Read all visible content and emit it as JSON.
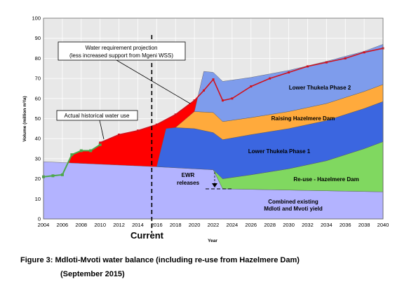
{
  "chart_data": {
    "type": "area",
    "title": "",
    "xlabel": "Year",
    "ylabel": "Volume (million m³/a)",
    "xlim": [
      2004,
      2040
    ],
    "ylim": [
      0,
      100
    ],
    "x_ticks": [
      2004,
      2006,
      2008,
      2010,
      2012,
      2014,
      2016,
      2018,
      2020,
      2022,
      2024,
      2026,
      2028,
      2030,
      2032,
      2034,
      2036,
      2038,
      2040
    ],
    "y_ticks": [
      0,
      10,
      20,
      30,
      40,
      50,
      60,
      70,
      80,
      90,
      100
    ],
    "grid": true,
    "colors": {
      "combined_yield": "#b3b3ff",
      "reuse": "#80d860",
      "lower_thukela_1": "#3b66e0",
      "raising_hazelmere": "#ffaa3c",
      "lower_thukela_2": "#7e9cec",
      "deficit": "#ff0000",
      "historical_line": "#4ca84c",
      "projection_line": "#d0121e",
      "plot_background": "#e8e8e8"
    },
    "series": [
      {
        "name": "Combined existing Mdloti and Mvoti yield",
        "x": [
          2004,
          2016,
          2022,
          2023,
          2040
        ],
        "values": [
          28.5,
          26,
          24.5,
          15,
          13.5
        ]
      },
      {
        "name": "Re-use - Hazelmere Dam",
        "x": [
          2022,
          2023,
          2026,
          2030,
          2034,
          2038,
          2040
        ],
        "values": [
          24.5,
          20,
          22,
          25,
          29,
          35,
          38.5
        ]
      },
      {
        "name": "Lower Thukela Phase 1",
        "x": [
          2016,
          2017,
          2018,
          2020,
          2022,
          2023,
          2026,
          2030,
          2034,
          2038,
          2040
        ],
        "values": [
          26,
          45,
          45.5,
          45,
          43,
          39.5,
          42,
          45,
          49,
          55,
          58.5
        ]
      },
      {
        "name": "Raising Hazelmere Dam",
        "x": [
          2018,
          2020,
          2022,
          2023,
          2026,
          2030,
          2034,
          2038,
          2040
        ],
        "values": [
          45.5,
          53.5,
          53,
          48.5,
          50.5,
          53.5,
          57.5,
          63.5,
          67
        ]
      },
      {
        "name": "Lower Thukela Phase 2",
        "x": [
          2020,
          2021,
          2022,
          2023,
          2026,
          2030,
          2034,
          2038,
          2040
        ],
        "values": [
          53.5,
          73.5,
          73,
          68.5,
          70.5,
          74,
          78.5,
          83.5,
          87
        ]
      },
      {
        "name": "Actual historical water use",
        "x": [
          2004,
          2005,
          2006,
          2007,
          2008,
          2009,
          2010
        ],
        "values": [
          21,
          21.5,
          22,
          32,
          34,
          34,
          37
        ]
      },
      {
        "name": "Water requirement projection (less increased support from Mgeni WSS)",
        "x": [
          2010,
          2012,
          2014,
          2016,
          2018,
          2020,
          2021,
          2022,
          2023,
          2024,
          2026,
          2028,
          2030,
          2032,
          2034,
          2036,
          2038,
          2040
        ],
        "values": [
          38,
          42,
          44,
          47,
          52,
          59,
          64,
          69.5,
          59,
          60,
          66,
          70,
          73,
          76,
          78,
          80,
          83,
          85
        ]
      }
    ],
    "annotations": {
      "current_label": "Current",
      "current_year": 2016,
      "historical_callout": "Actual historical water use",
      "projection_callout_line1": "Water requirement projection",
      "projection_callout_line2": "(less increased support from Mgeni WSS)",
      "ewr_line1": "EWR",
      "ewr_line2": "releases",
      "lower_thukela_2": "Lower Thukela Phase 2",
      "raising_hazelmere": "Raising Hazelmere Dam",
      "lower_thukela_1": "Lower Thukela Phase 1",
      "reuse": "Re-use - Hazelmere Dam",
      "combined_line1": "Combined existing",
      "combined_line2": "Mdloti and Mvoti yield"
    }
  },
  "caption": {
    "line1": "Figure 3: Mdloti-Mvoti water balance (including re-use from Hazelmere Dam)",
    "line2": "(September 2015)"
  }
}
